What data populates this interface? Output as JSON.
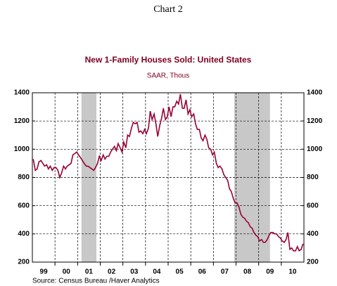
{
  "chart_data": {
    "type": "line",
    "header": "Chart 2",
    "title": "New 1-Family Houses Sold: United States",
    "subtitle": "SAAR, Thous",
    "source": "Source:  Census Bureau /Haver Analytics",
    "xlim": [
      1999,
      2011
    ],
    "ylim": [
      200,
      1400
    ],
    "yticks": [
      200,
      400,
      600,
      800,
      1000,
      1200,
      1400
    ],
    "xticks": [
      {
        "value": 1999.5,
        "label": "99"
      },
      {
        "value": 2000.5,
        "label": "00"
      },
      {
        "value": 2001.5,
        "label": "01"
      },
      {
        "value": 2002.5,
        "label": "02"
      },
      {
        "value": 2003.5,
        "label": "03"
      },
      {
        "value": 2004.5,
        "label": "04"
      },
      {
        "value": 2005.5,
        "label": "05"
      },
      {
        "value": 2006.5,
        "label": "06"
      },
      {
        "value": 2007.5,
        "label": "07"
      },
      {
        "value": 2008.5,
        "label": "08"
      },
      {
        "value": 2009.5,
        "label": "09"
      },
      {
        "value": 2010.5,
        "label": "10"
      }
    ],
    "xgrid": [
      2000,
      2001,
      2002,
      2003,
      2004,
      2005,
      2006,
      2007,
      2008,
      2009,
      2010
    ],
    "shading": [
      [
        2001.17,
        2001.83
      ],
      [
        2007.92,
        2009.5
      ]
    ],
    "shading_color": "#c8c8c8",
    "grid": true,
    "series": [
      {
        "name": "New 1-Family Houses Sold",
        "color": "#990033",
        "x": [
          1999.04,
          1999.13,
          1999.21,
          1999.29,
          1999.38,
          1999.46,
          1999.54,
          1999.63,
          1999.71,
          1999.79,
          1999.88,
          1999.96,
          2000.04,
          2000.13,
          2000.21,
          2000.29,
          2000.38,
          2000.46,
          2000.54,
          2000.63,
          2000.71,
          2000.79,
          2000.88,
          2000.96,
          2001.04,
          2001.13,
          2001.21,
          2001.29,
          2001.38,
          2001.46,
          2001.54,
          2001.63,
          2001.71,
          2001.79,
          2001.88,
          2001.96,
          2002.04,
          2002.13,
          2002.21,
          2002.29,
          2002.38,
          2002.46,
          2002.54,
          2002.63,
          2002.71,
          2002.79,
          2002.88,
          2002.96,
          2003.04,
          2003.13,
          2003.21,
          2003.29,
          2003.38,
          2003.46,
          2003.54,
          2003.63,
          2003.71,
          2003.79,
          2003.88,
          2003.96,
          2004.04,
          2004.13,
          2004.21,
          2004.29,
          2004.38,
          2004.46,
          2004.54,
          2004.63,
          2004.71,
          2004.79,
          2004.88,
          2004.96,
          2005.04,
          2005.13,
          2005.21,
          2005.29,
          2005.38,
          2005.46,
          2005.54,
          2005.63,
          2005.71,
          2005.79,
          2005.88,
          2005.96,
          2006.04,
          2006.13,
          2006.21,
          2006.29,
          2006.38,
          2006.46,
          2006.54,
          2006.63,
          2006.71,
          2006.79,
          2006.88,
          2006.96,
          2007.04,
          2007.13,
          2007.21,
          2007.29,
          2007.38,
          2007.46,
          2007.54,
          2007.63,
          2007.71,
          2007.79,
          2007.88,
          2007.96,
          2008.04,
          2008.13,
          2008.21,
          2008.29,
          2008.38,
          2008.46,
          2008.54,
          2008.63,
          2008.71,
          2008.79,
          2008.88,
          2008.96,
          2009.04,
          2009.13,
          2009.21,
          2009.29,
          2009.38,
          2009.46,
          2009.54,
          2009.63,
          2009.71,
          2009.79,
          2009.88,
          2009.96,
          2010.04,
          2010.13,
          2010.21,
          2010.29,
          2010.38,
          2010.46,
          2010.54,
          2010.63,
          2010.71,
          2010.79,
          2010.88,
          2010.96
        ],
        "values": [
          930,
          850,
          860,
          910,
          920,
          900,
          880,
          890,
          860,
          880,
          850,
          870,
          870,
          850,
          800,
          830,
          880,
          860,
          880,
          890,
          900,
          960,
          970,
          980,
          960,
          940,
          920,
          900,
          880,
          880,
          870,
          860,
          850,
          870,
          900,
          950,
          920,
          960,
          930,
          950,
          950,
          980,
          1000,
          1020,
          990,
          1040,
          1010,
          980,
          1050,
          1010,
          1100,
          1090,
          1150,
          1190,
          1180,
          1190,
          1120,
          1130,
          1110,
          1140,
          1110,
          1150,
          1270,
          1210,
          1250,
          1180,
          1090,
          1170,
          1220,
          1290,
          1210,
          1230,
          1300,
          1230,
          1300,
          1300,
          1340,
          1320,
          1390,
          1290,
          1290,
          1350,
          1250,
          1280,
          1230,
          1250,
          1180,
          1140,
          1140,
          1080,
          1060,
          1100,
          1070,
          1010,
          1000,
          960,
          980,
          900,
          870,
          880,
          860,
          820,
          800,
          780,
          720,
          700,
          650,
          620,
          620,
          590,
          540,
          520,
          510,
          490,
          480,
          450,
          440,
          410,
          390,
          380,
          350,
          360,
          340,
          340,
          360,
          390,
          410,
          410,
          400,
          400,
          380,
          370,
          350,
          340,
          360,
          410,
          290,
          300,
          280,
          280,
          310,
          280,
          290,
          330
        ]
      }
    ]
  }
}
